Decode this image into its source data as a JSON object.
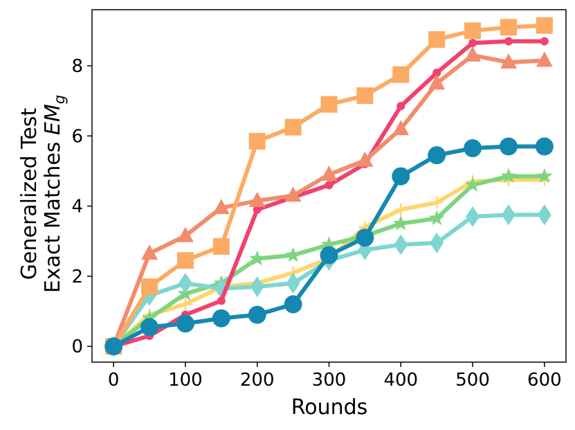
{
  "chart_data": {
    "type": "line",
    "title": "",
    "xlabel": "Rounds",
    "ylabel_line1": "Generalized Test",
    "ylabel_line2_text": "Exact Matches ",
    "ylabel_line2_math": "EM",
    "ylabel_line2_sub": "g",
    "xlim": [
      -30,
      630
    ],
    "ylim": [
      -0.45,
      9.6
    ],
    "xticks": [
      0,
      100,
      200,
      300,
      400,
      500,
      600
    ],
    "yticks": [
      0,
      2,
      4,
      6,
      8
    ],
    "x": [
      0,
      50,
      100,
      150,
      200,
      250,
      300,
      350,
      400,
      450,
      500,
      550,
      600
    ],
    "grid": false,
    "legend": "none",
    "series": [
      {
        "color": "#ffd56b",
        "marker": "plus",
        "values": [
          0.0,
          0.9,
          1.2,
          1.7,
          1.8,
          2.1,
          2.5,
          3.4,
          3.9,
          4.1,
          4.7,
          4.75,
          4.75
        ]
      },
      {
        "color": "#7fd47f",
        "marker": "star",
        "values": [
          0.0,
          0.8,
          1.5,
          1.8,
          2.5,
          2.6,
          2.9,
          3.15,
          3.5,
          3.65,
          4.6,
          4.85,
          4.85
        ]
      },
      {
        "color": "#7dd6d0",
        "marker": "diamond",
        "values": [
          0.0,
          1.45,
          1.8,
          1.65,
          1.7,
          1.8,
          2.45,
          2.75,
          2.9,
          2.95,
          3.7,
          3.75,
          3.75
        ]
      },
      {
        "color": "#ef426e",
        "marker": "smallcircle",
        "values": [
          0.0,
          0.3,
          0.9,
          1.3,
          3.9,
          4.25,
          4.6,
          5.2,
          6.85,
          7.8,
          8.65,
          8.7,
          8.7
        ]
      },
      {
        "color": "#f28c6c",
        "marker": "triangle",
        "values": [
          0.0,
          2.65,
          3.15,
          3.95,
          4.15,
          4.3,
          4.9,
          5.3,
          6.2,
          7.5,
          8.3,
          8.1,
          8.15
        ]
      },
      {
        "color": "#fbab63",
        "marker": "square",
        "values": [
          0.0,
          1.7,
          2.45,
          2.85,
          5.85,
          6.25,
          6.9,
          7.15,
          7.75,
          8.75,
          9.0,
          9.1,
          9.15
        ]
      },
      {
        "color": "#1588b2",
        "marker": "circle",
        "values": [
          0.0,
          0.55,
          0.65,
          0.8,
          0.9,
          1.2,
          2.6,
          3.1,
          4.85,
          5.45,
          5.65,
          5.7,
          5.7
        ]
      }
    ]
  }
}
